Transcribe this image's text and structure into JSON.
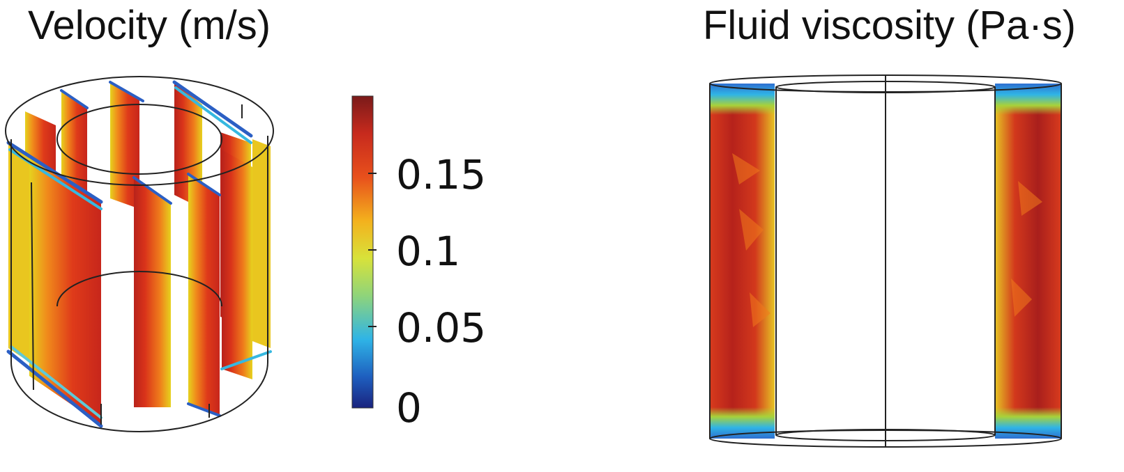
{
  "panels": {
    "velocity": {
      "title": "Velocity (m/s)",
      "colorbar": {
        "ticks": [
          "0.15",
          "0.1",
          "0.05",
          "0"
        ],
        "tick_values": [
          0.15,
          0.1,
          0.05,
          0
        ],
        "range": [
          0,
          0.19
        ],
        "colormap": "rainbow (blue-cyan-green-yellow-red-dark red)"
      }
    },
    "viscosity": {
      "title": "Fluid viscosity (Pa·s)"
    }
  },
  "colors": {
    "low": "#1a237e",
    "mid": "#a8d23a",
    "high": "#7a1a1a",
    "outline": "#222222"
  }
}
